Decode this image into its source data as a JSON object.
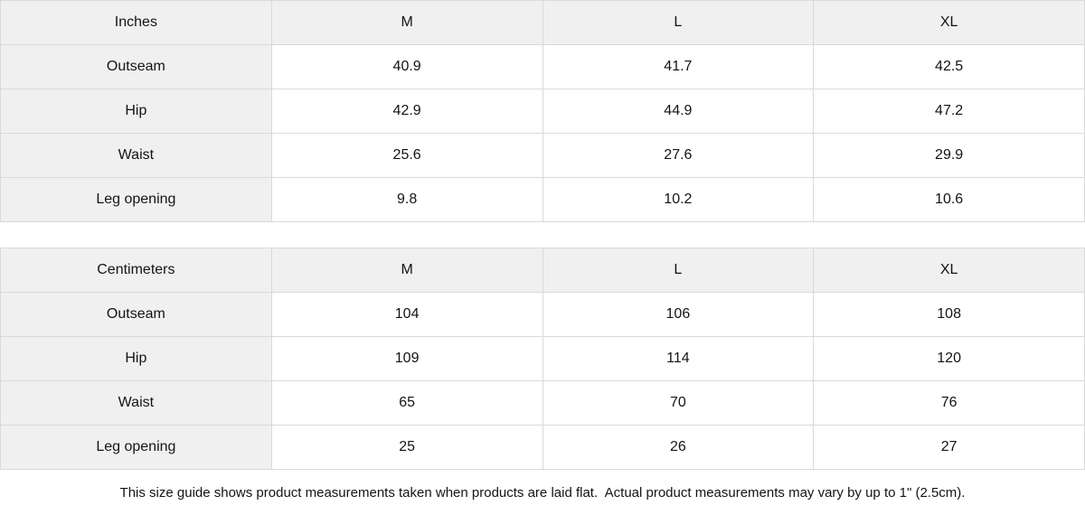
{
  "colors": {
    "background": "#ffffff",
    "header_row_bg": "#f0f0f0",
    "label_column_bg": "#f0f0f0",
    "cell_border": "#d9d9d9",
    "text": "#141414"
  },
  "tables": [
    {
      "unit_label": "Inches",
      "columns": [
        "M",
        "L",
        "XL"
      ],
      "rows": [
        {
          "label": "Outseam",
          "values": [
            "40.9",
            "41.7",
            "42.5"
          ]
        },
        {
          "label": "Hip",
          "values": [
            "42.9",
            "44.9",
            "47.2"
          ]
        },
        {
          "label": "Waist",
          "values": [
            "25.6",
            "27.6",
            "29.9"
          ]
        },
        {
          "label": "Leg opening",
          "values": [
            "9.8",
            "10.2",
            "10.6"
          ]
        }
      ]
    },
    {
      "unit_label": "Centimeters",
      "columns": [
        "M",
        "L",
        "XL"
      ],
      "rows": [
        {
          "label": "Outseam",
          "values": [
            "104",
            "106",
            "108"
          ]
        },
        {
          "label": "Hip",
          "values": [
            "109",
            "114",
            "120"
          ]
        },
        {
          "label": "Waist",
          "values": [
            "65",
            "70",
            "76"
          ]
        },
        {
          "label": "Leg opening",
          "values": [
            "25",
            "26",
            "27"
          ]
        }
      ]
    }
  ],
  "footer": {
    "note": "This size guide shows product measurements taken when products are laid flat.  Actual product measurements may vary by up to 1\" (2.5cm)."
  }
}
